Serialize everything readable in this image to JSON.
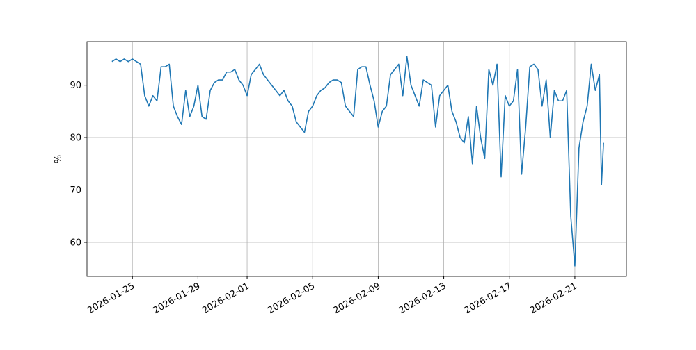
{
  "chart_data": {
    "type": "line",
    "ylabel": "%",
    "x": [
      "2026-01-23 18:00",
      "2026-01-24 00:00",
      "2026-01-24 06:00",
      "2026-01-24 12:00",
      "2026-01-24 18:00",
      "2026-01-25 00:00",
      "2026-01-25 06:00",
      "2026-01-25 12:00",
      "2026-01-25 18:00",
      "2026-01-26 00:00",
      "2026-01-26 06:00",
      "2026-01-26 12:00",
      "2026-01-26 18:00",
      "2026-01-27 00:00",
      "2026-01-27 06:00",
      "2026-01-27 12:00",
      "2026-01-27 18:00",
      "2026-01-28 00:00",
      "2026-01-28 06:00",
      "2026-01-28 12:00",
      "2026-01-28 18:00",
      "2026-01-29 00:00",
      "2026-01-29 06:00",
      "2026-01-29 12:00",
      "2026-01-29 18:00",
      "2026-01-30 00:00",
      "2026-01-30 06:00",
      "2026-01-30 12:00",
      "2026-01-30 18:00",
      "2026-01-31 00:00",
      "2026-01-31 06:00",
      "2026-01-31 12:00",
      "2026-01-31 18:00",
      "2026-02-01 00:00",
      "2026-02-01 06:00",
      "2026-02-01 12:00",
      "2026-02-01 18:00",
      "2026-02-02 00:00",
      "2026-02-02 06:00",
      "2026-02-02 12:00",
      "2026-02-02 18:00",
      "2026-02-03 00:00",
      "2026-02-03 06:00",
      "2026-02-03 12:00",
      "2026-02-03 18:00",
      "2026-02-04 00:00",
      "2026-02-04 06:00",
      "2026-02-04 12:00",
      "2026-02-04 18:00",
      "2026-02-05 00:00",
      "2026-02-05 06:00",
      "2026-02-05 12:00",
      "2026-02-05 18:00",
      "2026-02-06 00:00",
      "2026-02-06 06:00",
      "2026-02-06 12:00",
      "2026-02-06 18:00",
      "2026-02-07 00:00",
      "2026-02-07 06:00",
      "2026-02-07 12:00",
      "2026-02-07 18:00",
      "2026-02-08 00:00",
      "2026-02-08 06:00",
      "2026-02-08 12:00",
      "2026-02-08 18:00",
      "2026-02-09 00:00",
      "2026-02-09 06:00",
      "2026-02-09 12:00",
      "2026-02-09 18:00",
      "2026-02-10 00:00",
      "2026-02-10 06:00",
      "2026-02-10 12:00",
      "2026-02-10 18:00",
      "2026-02-11 00:00",
      "2026-02-11 06:00",
      "2026-02-11 12:00",
      "2026-02-11 18:00",
      "2026-02-12 00:00",
      "2026-02-12 06:00",
      "2026-02-12 12:00",
      "2026-02-12 18:00",
      "2026-02-13 00:00",
      "2026-02-13 06:00",
      "2026-02-13 12:00",
      "2026-02-13 18:00",
      "2026-02-14 00:00",
      "2026-02-14 06:00",
      "2026-02-14 12:00",
      "2026-02-14 18:00",
      "2026-02-15 00:00",
      "2026-02-15 06:00",
      "2026-02-15 12:00",
      "2026-02-15 18:00",
      "2026-02-16 00:00",
      "2026-02-16 06:00",
      "2026-02-16 12:00",
      "2026-02-16 18:00",
      "2026-02-17 00:00",
      "2026-02-17 06:00",
      "2026-02-17 12:00",
      "2026-02-17 18:00",
      "2026-02-18 00:00",
      "2026-02-18 06:00",
      "2026-02-18 12:00",
      "2026-02-18 18:00",
      "2026-02-19 00:00",
      "2026-02-19 06:00",
      "2026-02-19 12:00",
      "2026-02-19 18:00",
      "2026-02-20 00:00",
      "2026-02-20 06:00",
      "2026-02-20 12:00",
      "2026-02-20 18:00",
      "2026-02-21 00:00",
      "2026-02-21 06:00",
      "2026-02-21 12:00",
      "2026-02-21 18:00",
      "2026-02-22 00:00",
      "2026-02-22 06:00",
      "2026-02-22 12:00",
      "2026-02-22 15:00",
      "2026-02-22 18:00"
    ],
    "series": [
      {
        "color": "#1f77b4",
        "values": [
          94.5,
          95,
          94.5,
          95,
          94.5,
          95,
          94.5,
          94,
          88,
          86,
          88,
          87,
          93.5,
          93.5,
          94,
          86,
          84,
          82.5,
          89,
          84,
          86,
          90,
          84,
          83.5,
          89,
          90.5,
          91,
          91,
          92.5,
          92.5,
          93,
          91,
          90,
          88,
          92,
          93,
          94,
          92,
          91,
          90,
          89,
          88,
          89,
          87,
          86,
          83,
          82,
          81,
          85,
          86,
          88,
          89,
          89.5,
          90.5,
          91,
          91,
          90.5,
          86,
          85,
          84,
          93,
          93.5,
          93.5,
          90,
          87,
          82,
          85,
          86,
          92,
          93,
          94,
          88,
          95.5,
          90,
          88,
          86,
          91,
          90.5,
          90,
          82,
          88,
          89,
          90,
          85,
          83,
          80,
          79,
          84,
          75,
          86,
          80,
          76,
          93,
          90,
          94,
          72.5,
          88,
          86,
          87,
          93,
          73,
          82,
          93.5,
          94,
          93,
          86,
          91,
          80,
          89,
          87,
          87,
          89,
          65,
          55.5,
          78,
          83,
          86,
          94,
          89,
          92,
          71,
          79
        ]
      }
    ],
    "xlim": [
      "2026-01-22 05:30",
      "2026-02-24 03:30"
    ],
    "xticks": [
      "2026-01-25",
      "2026-01-29",
      "2026-02-01",
      "2026-02-05",
      "2026-02-09",
      "2026-02-13",
      "2026-02-17",
      "2026-02-21"
    ],
    "ylim": [
      53.5,
      98.3
    ],
    "yticks": [
      60,
      70,
      80,
      90
    ],
    "grid": true
  }
}
